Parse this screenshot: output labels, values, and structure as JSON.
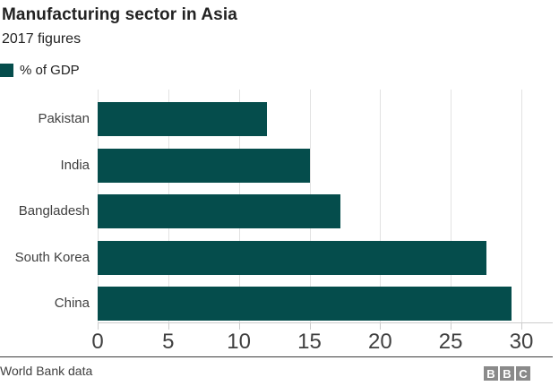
{
  "header": {
    "title": "Manufacturing sector in Asia",
    "subtitle": "2017 figures"
  },
  "legend": {
    "label": "% of GDP",
    "swatch_color": "#054d4c"
  },
  "chart_data": {
    "type": "bar",
    "orientation": "horizontal",
    "title": "Manufacturing sector in Asia",
    "subtitle": "2017 figures",
    "series_label": "% of GDP",
    "categories": [
      "Pakistan",
      "India",
      "Bangladesh",
      "South Korea",
      "China"
    ],
    "values": [
      12,
      15,
      17.2,
      27.5,
      29.3
    ],
    "xlim": [
      0,
      30
    ],
    "xticks": [
      0,
      5,
      10,
      15,
      20,
      25,
      30
    ],
    "grid": "vertical gridlines on, light gray",
    "legend_position": "top-left",
    "bar_color": "#054d4c"
  },
  "footer": {
    "source": "World Bank data",
    "logo_letters": [
      "B",
      "B",
      "C"
    ]
  },
  "colors": {
    "bar": "#054d4c",
    "gridline": "#e2e2e2",
    "axis": "#cccccc",
    "title_text": "#222222",
    "label_text": "#404040",
    "divider": "#3d3d3d",
    "logo_background": "#8a8a8a"
  }
}
